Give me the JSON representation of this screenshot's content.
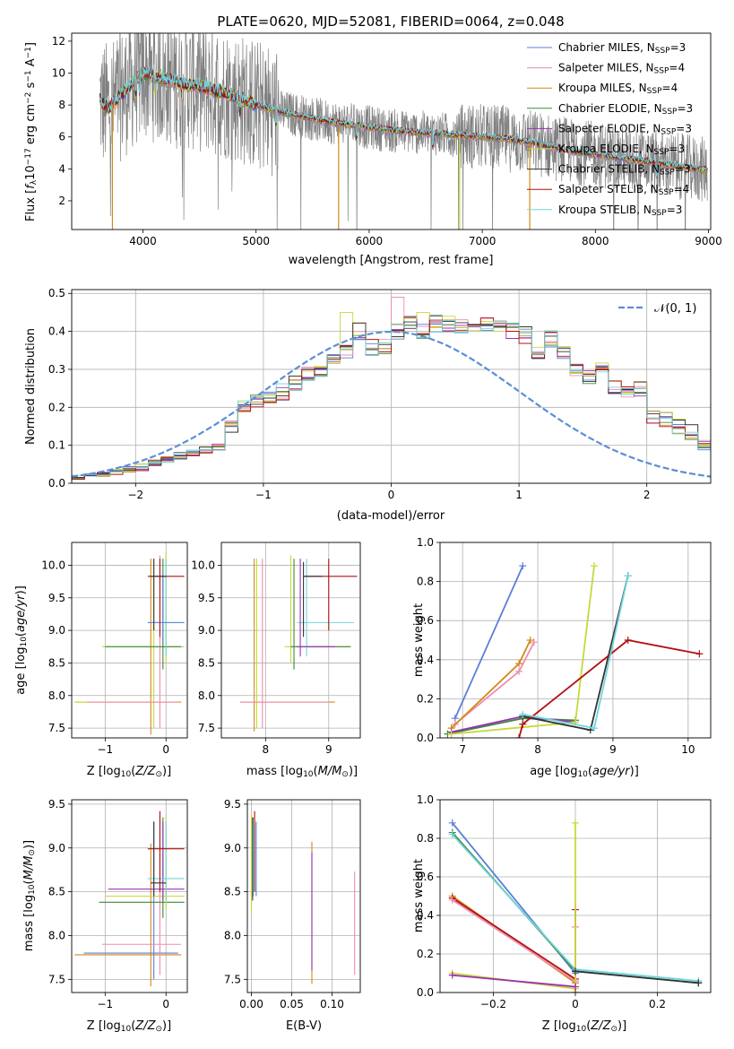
{
  "figure": {
    "title": "PLATE=0620, MJD=52081, FIBERID=0064, z=0.048"
  },
  "chart_data": [
    {
      "id": "spectrum",
      "type": "line",
      "xlabel": "wavelength [Angstrom, rest frame]",
      "ylabel": "Flux [f_λ 10^-17 erg cm^-2 s^-1 A^-1]",
      "xlim": [
        3370,
        9020
      ],
      "ylim": [
        0.2,
        12.5
      ],
      "xticks": [
        4000,
        5000,
        6000,
        7000,
        8000,
        9000
      ],
      "yticks": [
        2,
        4,
        6,
        8,
        10,
        12
      ],
      "grid": false,
      "legend_placement": "top-right",
      "legend": [
        {
          "label": "Chabrier MILES, N_SSP=3",
          "color": "#5b7fd6"
        },
        {
          "label": "Salpeter MILES, N_SSP=4",
          "color": "#f08cb0"
        },
        {
          "label": "Kroupa MILES, N_SSP=4",
          "color": "#d08a1a"
        },
        {
          "label": "Chabrier ELODIE, N_SSP=3",
          "color": "#3d8a3d"
        },
        {
          "label": "Salpeter ELODIE, N_SSP=3",
          "color": "#9b30b8"
        },
        {
          "label": "Kroupa ELODIE, N_SSP=3",
          "color": "#c8d83a"
        },
        {
          "label": "Chabrier STELIB, N_SSP=3",
          "color": "#333333"
        },
        {
          "label": "Salpeter STELIB, N_SSP=4",
          "color": "#b01010"
        },
        {
          "label": "Kroupa STELIB, N_SSP=3",
          "color": "#6fd5dc"
        }
      ],
      "data_color": "#808080",
      "continuum": {
        "x": [
          3600,
          3650,
          3700,
          3800,
          3900,
          4000,
          4100,
          4200,
          4300,
          4400,
          4500,
          4600,
          4700,
          4800,
          4900,
          5000,
          5200,
          5400,
          5600,
          5800,
          6000,
          6200,
          6400,
          6600,
          6800,
          7000,
          7200,
          7400,
          7600,
          7800,
          8000,
          8200,
          8400,
          8600,
          8800,
          8990
        ],
        "y": [
          8.6,
          8.0,
          7.8,
          8.6,
          9.3,
          10.0,
          9.8,
          9.6,
          9.4,
          9.3,
          9.2,
          9.0,
          8.8,
          8.6,
          8.3,
          8.0,
          7.6,
          7.3,
          7.0,
          6.8,
          6.6,
          6.4,
          6.3,
          6.2,
          6.1,
          6.0,
          5.9,
          5.7,
          5.4,
          5.1,
          4.9,
          4.7,
          4.5,
          4.3,
          4.1,
          3.9
        ]
      }
    },
    {
      "id": "residuals",
      "type": "line",
      "xlabel": "(data-model)/error",
      "ylabel": "Normed distribution",
      "xlim": [
        -2.5,
        2.5
      ],
      "ylim": [
        0,
        0.51
      ],
      "xticks": [
        -2,
        -1,
        0,
        1,
        2
      ],
      "yticks": [
        0.0,
        0.1,
        0.2,
        0.3,
        0.4,
        0.5
      ],
      "grid": true,
      "legend_placement": "top-right",
      "legend": [
        {
          "label": "𝒩(0, 1)",
          "color": "#5b8fd6"
        }
      ],
      "bin_width": 0.1,
      "bin_start": -2.5,
      "base_hist": [
        0.018,
        0.022,
        0.027,
        0.031,
        0.036,
        0.042,
        0.052,
        0.062,
        0.072,
        0.08,
        0.088,
        0.095,
        0.15,
        0.195,
        0.215,
        0.225,
        0.24,
        0.265,
        0.29,
        0.3,
        0.33,
        0.35,
        0.4,
        0.36,
        0.36,
        0.4,
        0.42,
        0.4,
        0.42,
        0.42,
        0.41,
        0.4,
        0.42,
        0.41,
        0.4,
        0.39,
        0.35,
        0.38,
        0.34,
        0.3,
        0.285,
        0.3,
        0.25,
        0.24,
        0.25,
        0.18,
        0.17,
        0.15,
        0.135,
        0.11,
        0.105,
        0.088,
        0.075,
        0.065,
        0.06,
        0.052,
        0.04,
        0.03,
        0.022,
        0.018
      ]
    },
    {
      "id": "age-vs-Z",
      "type": "scatter",
      "xlabel": "Z [log10(Z/Z⊙)]",
      "ylabel": "age  [log10(age/yr)]",
      "xlim": [
        -1.55,
        0.35
      ],
      "ylim": [
        7.35,
        10.35
      ],
      "xticks": [
        -1,
        0
      ],
      "yticks": [
        7.5,
        8.0,
        8.5,
        9.0,
        9.5,
        10.0
      ],
      "grid": true
    },
    {
      "id": "age-vs-mass",
      "type": "scatter",
      "xlabel": "mass [log10(M/M⊙)]",
      "ylabel": "",
      "xlim": [
        7.3,
        9.5
      ],
      "ylim": [
        7.35,
        10.35
      ],
      "xticks": [
        8,
        9
      ],
      "yticks": [
        7.5,
        8.0,
        8.5,
        9.0,
        9.5,
        10.0
      ],
      "grid": true
    },
    {
      "id": "mw-vs-age",
      "type": "line",
      "xlabel": "age  [log10(age/yr)]",
      "ylabel": "mass weight",
      "xlim": [
        6.7,
        10.3
      ],
      "ylim": [
        0,
        1.0
      ],
      "xticks": [
        7,
        8,
        9,
        10
      ],
      "yticks": [
        0.0,
        0.2,
        0.4,
        0.6,
        0.8,
        1.0
      ],
      "grid": true,
      "series": [
        {
          "color": "#5b7fd6",
          "x": [
            6.9,
            7.8
          ],
          "y": [
            0.1,
            0.88
          ]
        },
        {
          "color": "#f08cb0",
          "x": [
            6.9,
            7.75,
            7.95
          ],
          "y": [
            0.07,
            0.34,
            0.49
          ]
        },
        {
          "color": "#d08a1a",
          "x": [
            6.85,
            7.75,
            7.9
          ],
          "y": [
            0.05,
            0.38,
            0.5
          ]
        },
        {
          "color": "#3d8a3d",
          "x": [
            6.8,
            7.8,
            8.5
          ],
          "y": [
            0.02,
            0.1,
            0.09
          ]
        },
        {
          "color": "#9b30b8",
          "x": [
            6.85,
            7.8,
            8.5
          ],
          "y": [
            0.03,
            0.11,
            0.08
          ]
        },
        {
          "color": "#c8d83a",
          "x": [
            6.85,
            8.5,
            8.75
          ],
          "y": [
            0.02,
            0.08,
            0.88
          ]
        },
        {
          "color": "#333333",
          "x": [
            7.8,
            8.7,
            9.2
          ],
          "y": [
            0.11,
            0.04,
            0.83
          ]
        },
        {
          "color": "#b01010",
          "x": [
            7.75,
            7.8,
            9.2,
            10.15
          ],
          "y": [
            0.0,
            0.07,
            0.5,
            0.43
          ]
        },
        {
          "color": "#6fd5dc",
          "x": [
            7.8,
            8.75,
            9.2
          ],
          "y": [
            0.12,
            0.05,
            0.83
          ]
        }
      ]
    },
    {
      "id": "mass-vs-Z",
      "type": "scatter",
      "xlabel": "Z [log10(Z/Z⊙)]",
      "ylabel": "mass [log10(M/M⊙)]",
      "xlim": [
        -1.55,
        0.35
      ],
      "ylim": [
        7.35,
        9.55
      ],
      "xticks": [
        -1,
        0
      ],
      "yticks": [
        7.5,
        8.0,
        8.5,
        9.0,
        9.5
      ],
      "grid": true
    },
    {
      "id": "mass-vs-ebv",
      "type": "scatter",
      "xlabel": "E(B-V)",
      "ylabel": "",
      "xlim": [
        -0.005,
        0.135
      ],
      "ylim": [
        7.35,
        9.55
      ],
      "xticks": [
        0.0,
        0.05,
        0.1
      ],
      "xtick_labels": [
        "0.00",
        "0.05",
        "0.10"
      ],
      "yticks": [
        7.5,
        8.0,
        8.5,
        9.0,
        9.5
      ],
      "grid": true
    },
    {
      "id": "mw-vs-Z",
      "type": "line",
      "xlabel": "Z [log10(Z/Z⊙)]",
      "ylabel": "mass weight",
      "xlim": [
        -0.33,
        0.33
      ],
      "ylim": [
        0,
        1.0
      ],
      "xticks": [
        -0.2,
        0.0,
        0.2
      ],
      "yticks": [
        0.0,
        0.2,
        0.4,
        0.6,
        0.8,
        1.0
      ],
      "grid": true,
      "series": [
        {
          "color": "#5b7fd6",
          "x": [
            -0.3,
            0.0
          ],
          "y": [
            0.88,
            0.1
          ]
        },
        {
          "color": "#3d8a3d",
          "x": [
            -0.3,
            0.0,
            0.3
          ],
          "y": [
            0.83,
            0.11,
            0.05
          ]
        },
        {
          "color": "#6fd5dc",
          "x": [
            -0.3,
            0.0,
            0.3
          ],
          "y": [
            0.82,
            0.12,
            0.06
          ]
        },
        {
          "color": "#d08a1a",
          "x": [
            -0.3,
            0.0
          ],
          "y": [
            0.5,
            0.05
          ]
        },
        {
          "color": "#b01010",
          "x": [
            -0.3,
            0.0,
            0.0,
            0.0
          ],
          "y": [
            0.49,
            0.07,
            0.43,
            0.0
          ]
        },
        {
          "color": "#f08cb0",
          "x": [
            -0.3,
            0.0,
            0.0
          ],
          "y": [
            0.48,
            0.06,
            0.34
          ]
        },
        {
          "color": "#c8d83a",
          "x": [
            -0.3,
            0.0,
            0.0
          ],
          "y": [
            0.1,
            0.02,
            0.88
          ]
        },
        {
          "color": "#9b30b8",
          "x": [
            -0.3,
            0.0
          ],
          "y": [
            0.09,
            0.03
          ]
        },
        {
          "color": "#333333",
          "x": [
            0.0,
            0.3
          ],
          "y": [
            0.11,
            0.05
          ]
        }
      ]
    }
  ]
}
